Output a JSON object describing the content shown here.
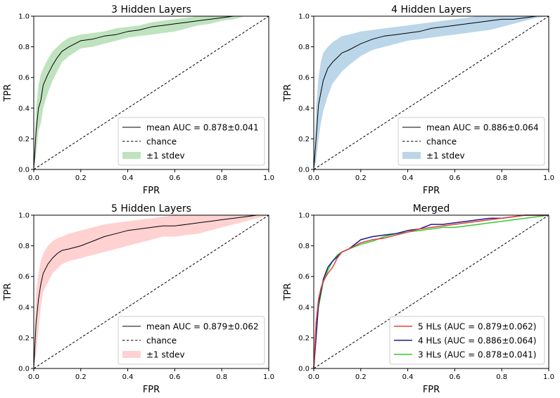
{
  "chart_data": [
    {
      "type": "line",
      "title": "3 Hidden Layers",
      "xlabel": "FPR",
      "ylabel": "TPR",
      "xlim": [
        0,
        1
      ],
      "ylim": [
        0,
        1
      ],
      "xticks": [
        "0.0",
        "0.2",
        "0.4",
        "0.6",
        "0.8",
        "1.0"
      ],
      "yticks": [
        "0.0",
        "0.2",
        "0.4",
        "0.6",
        "0.8",
        "1.0"
      ],
      "grid": false,
      "legend_position": "bottom-right",
      "series": [
        {
          "name": "mean AUC = 0.878±0.041",
          "color": "#000000",
          "x": [
            0,
            0.01,
            0.02,
            0.03,
            0.04,
            0.06,
            0.08,
            0.1,
            0.12,
            0.15,
            0.2,
            0.25,
            0.3,
            0.35,
            0.4,
            0.45,
            0.5,
            0.55,
            0.6,
            0.65,
            0.7,
            0.75,
            0.8,
            0.85,
            0.9,
            1.0
          ],
          "y": [
            0,
            0.25,
            0.4,
            0.45,
            0.55,
            0.62,
            0.68,
            0.73,
            0.77,
            0.8,
            0.84,
            0.85,
            0.87,
            0.88,
            0.9,
            0.91,
            0.93,
            0.94,
            0.95,
            0.96,
            0.97,
            0.98,
            0.99,
            1.0,
            1.0,
            1.0
          ]
        },
        {
          "name": "chance",
          "color": "#000000",
          "dashed": true,
          "x": [
            0,
            1
          ],
          "y": [
            0,
            1
          ]
        }
      ],
      "band": {
        "name": "±1 stdev",
        "color": "#2ca02c",
        "x": [
          0,
          0.01,
          0.02,
          0.03,
          0.04,
          0.06,
          0.08,
          0.1,
          0.12,
          0.15,
          0.2,
          0.25,
          0.3,
          0.35,
          0.4,
          0.45,
          0.5,
          0.55,
          0.6,
          0.65,
          0.7,
          0.75,
          0.8,
          0.85,
          0.9,
          1.0
        ],
        "upper": [
          0,
          0.4,
          0.55,
          0.62,
          0.66,
          0.72,
          0.77,
          0.8,
          0.83,
          0.86,
          0.88,
          0.89,
          0.9,
          0.92,
          0.93,
          0.94,
          0.96,
          0.97,
          0.98,
          0.99,
          1.0,
          1.0,
          1.0,
          1.0,
          1.0,
          1.0
        ],
        "lower": [
          0,
          0.1,
          0.25,
          0.3,
          0.4,
          0.5,
          0.58,
          0.64,
          0.7,
          0.74,
          0.79,
          0.8,
          0.82,
          0.84,
          0.86,
          0.87,
          0.88,
          0.89,
          0.9,
          0.92,
          0.94,
          0.95,
          0.97,
          0.98,
          1.0,
          1.0
        ]
      }
    },
    {
      "type": "line",
      "title": "4 Hidden Layers",
      "xlabel": "FPR",
      "ylabel": "TPR",
      "xlim": [
        0,
        1
      ],
      "ylim": [
        0,
        1
      ],
      "xticks": [
        "0.0",
        "0.2",
        "0.4",
        "0.6",
        "0.8",
        "1.0"
      ],
      "yticks": [
        "0.0",
        "0.2",
        "0.4",
        "0.6",
        "0.8",
        "1.0"
      ],
      "grid": false,
      "legend_position": "bottom-right",
      "series": [
        {
          "name": "mean AUC = 0.886±0.064",
          "color": "#000000",
          "x": [
            0,
            0.01,
            0.02,
            0.03,
            0.04,
            0.06,
            0.08,
            0.1,
            0.12,
            0.15,
            0.2,
            0.25,
            0.3,
            0.35,
            0.4,
            0.45,
            0.5,
            0.55,
            0.6,
            0.65,
            0.7,
            0.75,
            0.8,
            0.85,
            0.9,
            0.95,
            1.0
          ],
          "y": [
            0,
            0.2,
            0.42,
            0.5,
            0.58,
            0.66,
            0.7,
            0.73,
            0.76,
            0.78,
            0.82,
            0.85,
            0.87,
            0.88,
            0.89,
            0.9,
            0.92,
            0.93,
            0.94,
            0.95,
            0.96,
            0.97,
            0.98,
            0.98,
            0.99,
            1.0,
            1.0
          ]
        },
        {
          "name": "chance",
          "color": "#000000",
          "dashed": true,
          "x": [
            0,
            1
          ],
          "y": [
            0,
            1
          ]
        }
      ],
      "band": {
        "name": "±1 stdev",
        "color": "#1f77b4",
        "x": [
          0,
          0.01,
          0.02,
          0.03,
          0.04,
          0.06,
          0.08,
          0.1,
          0.12,
          0.15,
          0.2,
          0.25,
          0.3,
          0.35,
          0.4,
          0.45,
          0.5,
          0.55,
          0.6,
          0.65,
          0.7,
          0.75,
          0.8,
          0.85,
          0.9,
          0.95,
          1.0
        ],
        "upper": [
          0,
          0.4,
          0.6,
          0.7,
          0.76,
          0.8,
          0.83,
          0.85,
          0.87,
          0.88,
          0.9,
          0.91,
          0.92,
          0.93,
          0.94,
          0.95,
          0.96,
          0.97,
          0.98,
          0.99,
          1.0,
          1.0,
          1.0,
          1.0,
          1.0,
          1.0,
          1.0
        ],
        "lower": [
          0,
          0.05,
          0.2,
          0.3,
          0.38,
          0.48,
          0.56,
          0.6,
          0.64,
          0.68,
          0.74,
          0.78,
          0.8,
          0.82,
          0.84,
          0.85,
          0.86,
          0.87,
          0.88,
          0.89,
          0.9,
          0.91,
          0.93,
          0.95,
          0.97,
          0.99,
          1.0
        ]
      }
    },
    {
      "type": "line",
      "title": "5 Hidden Layers",
      "xlabel": "FPR",
      "ylabel": "TPR",
      "xlim": [
        0,
        1
      ],
      "ylim": [
        0,
        1
      ],
      "xticks": [
        "0.0",
        "0.2",
        "0.4",
        "0.6",
        "0.8",
        "1.0"
      ],
      "yticks": [
        "0.0",
        "0.2",
        "0.4",
        "0.6",
        "0.8",
        "1.0"
      ],
      "grid": false,
      "legend_position": "bottom-right",
      "series": [
        {
          "name": "mean AUC = 0.879±0.062",
          "color": "#000000",
          "x": [
            0,
            0.01,
            0.02,
            0.03,
            0.04,
            0.06,
            0.08,
            0.1,
            0.12,
            0.15,
            0.2,
            0.25,
            0.3,
            0.35,
            0.4,
            0.45,
            0.5,
            0.55,
            0.6,
            0.65,
            0.7,
            0.75,
            0.8,
            0.85,
            0.9,
            0.95,
            1.0
          ],
          "y": [
            0,
            0.3,
            0.45,
            0.55,
            0.62,
            0.68,
            0.72,
            0.75,
            0.77,
            0.78,
            0.8,
            0.83,
            0.86,
            0.88,
            0.9,
            0.91,
            0.92,
            0.93,
            0.93,
            0.94,
            0.95,
            0.96,
            0.97,
            0.98,
            0.99,
            1.0,
            1.0
          ]
        },
        {
          "name": "chance",
          "color": "#000000",
          "dashed": true,
          "x": [
            0,
            1
          ],
          "y": [
            0,
            1
          ]
        }
      ],
      "band": {
        "name": "±1 stdev",
        "color": "#ff6666",
        "x": [
          0,
          0.01,
          0.02,
          0.03,
          0.04,
          0.06,
          0.08,
          0.1,
          0.12,
          0.15,
          0.2,
          0.25,
          0.3,
          0.35,
          0.4,
          0.45,
          0.5,
          0.55,
          0.6,
          0.65,
          0.7,
          0.75,
          0.8,
          0.85,
          0.9,
          0.95,
          1.0
        ],
        "upper": [
          0,
          0.5,
          0.62,
          0.7,
          0.75,
          0.8,
          0.83,
          0.85,
          0.86,
          0.88,
          0.9,
          0.92,
          0.94,
          0.95,
          0.96,
          0.97,
          0.98,
          0.99,
          1.0,
          1.0,
          1.0,
          1.0,
          1.0,
          1.0,
          1.0,
          1.0,
          1.0
        ],
        "lower": [
          0,
          0.1,
          0.25,
          0.4,
          0.5,
          0.56,
          0.62,
          0.65,
          0.68,
          0.7,
          0.72,
          0.74,
          0.76,
          0.78,
          0.8,
          0.82,
          0.84,
          0.86,
          0.86,
          0.87,
          0.88,
          0.9,
          0.92,
          0.94,
          0.96,
          0.98,
          1.0
        ]
      }
    },
    {
      "type": "line",
      "title": "Merged",
      "xlabel": "FPR",
      "ylabel": "TPR",
      "xlim": [
        0,
        1
      ],
      "ylim": [
        0,
        1
      ],
      "xticks": [
        "0.0",
        "0.2",
        "0.4",
        "0.6",
        "0.8",
        "1.0"
      ],
      "yticks": [
        "0.0",
        "0.2",
        "0.4",
        "0.6",
        "0.8",
        "1.0"
      ],
      "grid": false,
      "legend_position": "bottom-right",
      "series": [
        {
          "name": "5 HLs (AUC = 0.879±0.062)",
          "color": "#e8413c",
          "x": [
            0,
            0.01,
            0.02,
            0.03,
            0.04,
            0.06,
            0.08,
            0.1,
            0.12,
            0.15,
            0.2,
            0.25,
            0.3,
            0.35,
            0.4,
            0.45,
            0.5,
            0.55,
            0.6,
            0.65,
            0.7,
            0.75,
            0.8,
            0.85,
            0.9,
            0.95,
            1.0
          ],
          "y": [
            0,
            0.3,
            0.45,
            0.52,
            0.57,
            0.62,
            0.66,
            0.72,
            0.76,
            0.78,
            0.82,
            0.84,
            0.85,
            0.87,
            0.89,
            0.91,
            0.92,
            0.93,
            0.94,
            0.95,
            0.96,
            0.97,
            0.98,
            0.99,
            1.0,
            1.0,
            1.0
          ]
        },
        {
          "name": "4 HLs (AUC = 0.886±0.064)",
          "color": "#1a1a8c",
          "x": [
            0,
            0.01,
            0.02,
            0.03,
            0.04,
            0.06,
            0.08,
            0.1,
            0.12,
            0.15,
            0.2,
            0.25,
            0.3,
            0.35,
            0.4,
            0.45,
            0.5,
            0.55,
            0.6,
            0.65,
            0.7,
            0.75,
            0.8,
            0.85,
            0.9,
            0.95,
            1.0
          ],
          "y": [
            0,
            0.2,
            0.42,
            0.5,
            0.58,
            0.66,
            0.7,
            0.73,
            0.76,
            0.78,
            0.84,
            0.86,
            0.87,
            0.88,
            0.9,
            0.91,
            0.94,
            0.94,
            0.95,
            0.96,
            0.97,
            0.98,
            0.98,
            0.99,
            1.0,
            1.0,
            1.0
          ]
        },
        {
          "name": "3 HLs (AUC = 0.878±0.041)",
          "color": "#33cc33",
          "x": [
            0,
            0.01,
            0.02,
            0.03,
            0.04,
            0.06,
            0.08,
            0.1,
            0.12,
            0.15,
            0.2,
            0.25,
            0.3,
            0.35,
            0.4,
            0.45,
            0.5,
            0.55,
            0.6,
            0.65,
            0.7,
            0.75,
            0.8,
            0.85,
            0.9,
            0.95,
            1.0
          ],
          "y": [
            0,
            0.25,
            0.4,
            0.48,
            0.56,
            0.64,
            0.7,
            0.74,
            0.76,
            0.78,
            0.81,
            0.83,
            0.86,
            0.88,
            0.89,
            0.9,
            0.91,
            0.92,
            0.92,
            0.93,
            0.94,
            0.95,
            0.96,
            0.97,
            0.98,
            0.99,
            1.0
          ]
        },
        {
          "name": "",
          "color": "#000000",
          "dashed": true,
          "x": [
            0,
            1
          ],
          "y": [
            0,
            1
          ]
        }
      ]
    }
  ]
}
